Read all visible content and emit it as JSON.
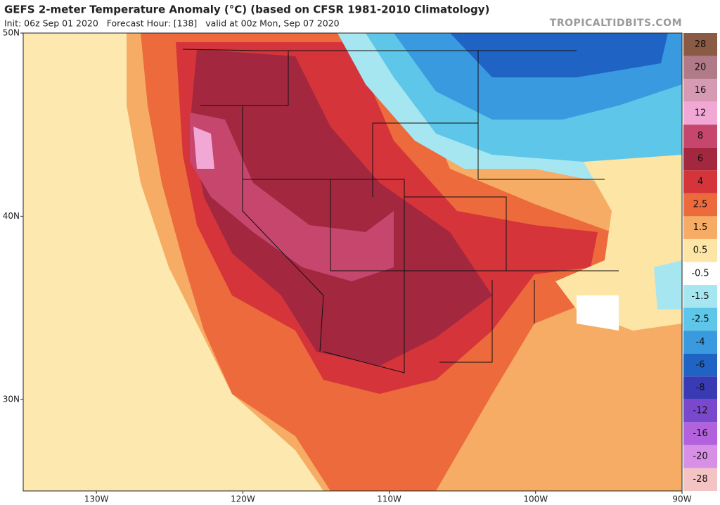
{
  "header": {
    "title": "GEFS 2-meter Temperature Anomaly (°C) (based on CFSR 1981-2010 Climatology)",
    "subtitle": "Init: 06z Sep 01 2020   Forecast Hour: [138]   valid at 00z Mon, Sep 07 2020",
    "brand": "TROPICALTIDBITS.COM"
  },
  "map": {
    "latlim": [
      25,
      50
    ],
    "lonlim": [
      -135,
      -90
    ],
    "lat_ticks": [
      {
        "value": 50,
        "label": "50N"
      },
      {
        "value": 40,
        "label": "40N"
      },
      {
        "value": 30,
        "label": "30N"
      }
    ],
    "lon_ticks": [
      {
        "value": -130,
        "label": "130W"
      },
      {
        "value": -120,
        "label": "120W"
      },
      {
        "value": -110,
        "label": "110W"
      },
      {
        "value": -100,
        "label": "100W"
      },
      {
        "value": -90,
        "label": "90W"
      }
    ]
  },
  "colorbar": {
    "ticks": [
      28,
      20,
      16,
      12,
      8,
      6,
      4,
      2.5,
      1.5,
      0.5,
      -0.5,
      -1.5,
      -2.5,
      -4,
      -6,
      -8,
      -12,
      -16,
      -20,
      -28
    ],
    "colors": [
      "#8a5a44",
      "#b07a88",
      "#d69ab2",
      "#f2a8d4",
      "#c7466e",
      "#a3283f",
      "#d5343a",
      "#ec6a3c",
      "#f6ac64",
      "#fde5a6",
      "#ffffff",
      "#a6e6f0",
      "#5ec6e8",
      "#3a9ae0",
      "#1f64c4",
      "#3a3ab4",
      "#7a48cc",
      "#b262dc",
      "#d890e6",
      "#f4c4c4"
    ]
  }
}
